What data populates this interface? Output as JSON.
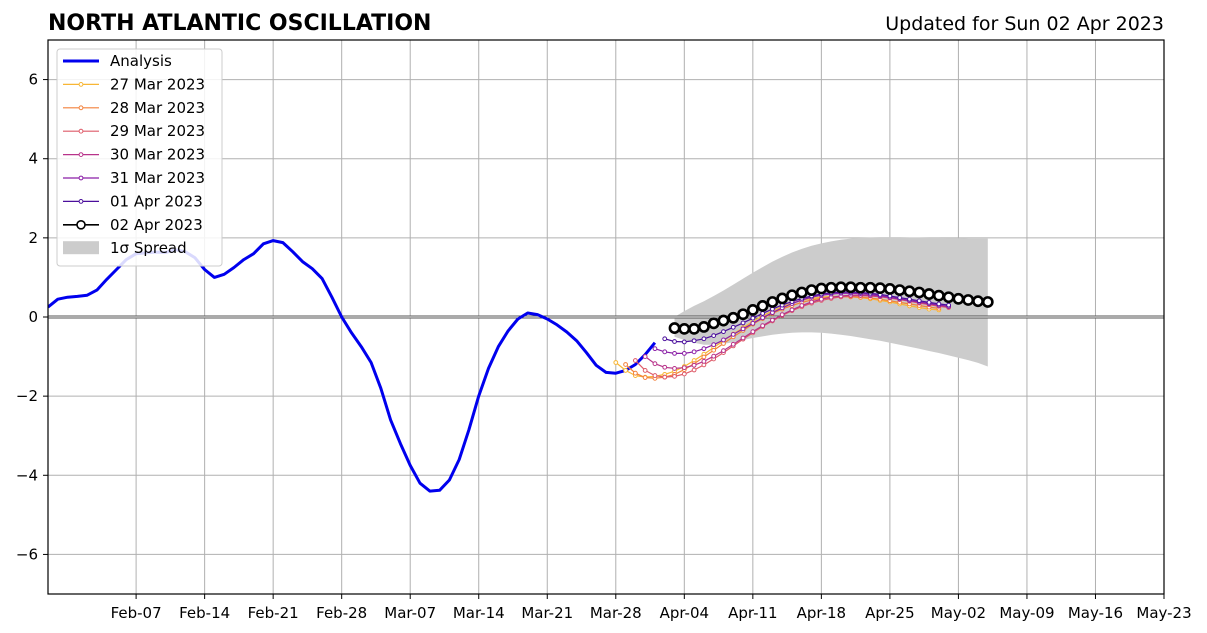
{
  "chart_data": {
    "type": "line",
    "title": "NORTH ATLANTIC OSCILLATION",
    "subtitle": "Updated for Sun 02 Apr 2023",
    "xlabel": "",
    "ylabel": "",
    "x_range": [
      "2023-01-29",
      "2023-05-23"
    ],
    "ylim": [
      -7,
      7
    ],
    "grid": true,
    "legend_position": "top-left",
    "zero_line": 0,
    "x_tick_labels": [
      "Feb-07",
      "Feb-14",
      "Feb-21",
      "Feb-28",
      "Mar-07",
      "Mar-14",
      "Mar-21",
      "Mar-28",
      "Apr-04",
      "Apr-11",
      "Apr-18",
      "Apr-25",
      "May-02",
      "May-09",
      "May-16",
      "May-23"
    ],
    "x_tick_dates": [
      "2023-02-07",
      "2023-02-14",
      "2023-02-21",
      "2023-02-28",
      "2023-03-07",
      "2023-03-14",
      "2023-03-21",
      "2023-03-28",
      "2023-04-04",
      "2023-04-11",
      "2023-04-18",
      "2023-04-25",
      "2023-05-02",
      "2023-05-09",
      "2023-05-16",
      "2023-05-23"
    ],
    "y_ticks": [
      -6,
      -4,
      -2,
      0,
      2,
      4,
      6
    ],
    "y_tick_labels": [
      "−6",
      "−4",
      "−2",
      "0",
      "2",
      "4",
      "6"
    ],
    "analysis": {
      "name": "Analysis",
      "color": "#0000ee",
      "points": [
        [
          "2023-01-29",
          0.25
        ],
        [
          "2023-01-30",
          0.45
        ],
        [
          "2023-01-31",
          0.5
        ],
        [
          "2023-02-01",
          0.52
        ],
        [
          "2023-02-02",
          0.55
        ],
        [
          "2023-02-03",
          0.68
        ],
        [
          "2023-02-04",
          0.95
        ],
        [
          "2023-02-05",
          1.2
        ],
        [
          "2023-02-06",
          1.45
        ],
        [
          "2023-02-07",
          1.6
        ],
        [
          "2023-02-08",
          1.62
        ],
        [
          "2023-02-09",
          1.64
        ],
        [
          "2023-02-10",
          1.63
        ],
        [
          "2023-02-11",
          1.7
        ],
        [
          "2023-02-12",
          1.65
        ],
        [
          "2023-02-13",
          1.5
        ],
        [
          "2023-02-14",
          1.2
        ],
        [
          "2023-02-15",
          1.0
        ],
        [
          "2023-02-16",
          1.08
        ],
        [
          "2023-02-17",
          1.25
        ],
        [
          "2023-02-18",
          1.45
        ],
        [
          "2023-02-19",
          1.6
        ],
        [
          "2023-02-20",
          1.85
        ],
        [
          "2023-02-21",
          1.93
        ],
        [
          "2023-02-22",
          1.88
        ],
        [
          "2023-02-23",
          1.65
        ],
        [
          "2023-02-24",
          1.4
        ],
        [
          "2023-02-25",
          1.22
        ],
        [
          "2023-02-26",
          0.97
        ],
        [
          "2023-02-27",
          0.5
        ],
        [
          "2023-02-28",
          0.0
        ],
        [
          "2023-03-01",
          -0.4
        ],
        [
          "2023-03-02",
          -0.75
        ],
        [
          "2023-03-03",
          -1.15
        ],
        [
          "2023-03-04",
          -1.8
        ],
        [
          "2023-03-05",
          -2.6
        ],
        [
          "2023-03-06",
          -3.2
        ],
        [
          "2023-03-07",
          -3.75
        ],
        [
          "2023-03-08",
          -4.2
        ],
        [
          "2023-03-09",
          -4.4
        ],
        [
          "2023-03-10",
          -4.38
        ],
        [
          "2023-03-11",
          -4.12
        ],
        [
          "2023-03-12",
          -3.6
        ],
        [
          "2023-03-13",
          -2.85
        ],
        [
          "2023-03-14",
          -2.0
        ],
        [
          "2023-03-15",
          -1.3
        ],
        [
          "2023-03-16",
          -0.75
        ],
        [
          "2023-03-17",
          -0.35
        ],
        [
          "2023-03-18",
          -0.05
        ],
        [
          "2023-03-19",
          0.1
        ],
        [
          "2023-03-20",
          0.06
        ],
        [
          "2023-03-21",
          -0.05
        ],
        [
          "2023-03-22",
          -0.2
        ],
        [
          "2023-03-23",
          -0.38
        ],
        [
          "2023-03-24",
          -0.6
        ],
        [
          "2023-03-25",
          -0.9
        ],
        [
          "2023-03-26",
          -1.22
        ],
        [
          "2023-03-27",
          -1.4
        ],
        [
          "2023-03-28",
          -1.42
        ],
        [
          "2023-03-29",
          -1.35
        ],
        [
          "2023-03-30",
          -1.2
        ],
        [
          "2023-03-31",
          -0.95
        ],
        [
          "2023-04-01",
          -0.65
        ]
      ]
    },
    "series": [
      {
        "name": "27 Mar 2023",
        "color": "#f8b634",
        "start": "2023-03-28",
        "values": [
          -1.15,
          -1.35,
          -1.48,
          -1.52,
          -1.5,
          -1.45,
          -1.37,
          -1.25,
          -1.1,
          -0.94,
          -0.77,
          -0.6,
          -0.43,
          -0.27,
          -0.11,
          0.03,
          0.15,
          0.26,
          0.35,
          0.42,
          0.47,
          0.5,
          0.52,
          0.52,
          0.51,
          0.49,
          0.46,
          0.42,
          0.38,
          0.33,
          0.28,
          0.24,
          0.2,
          0.18
        ]
      },
      {
        "name": "28 Mar 2023",
        "color": "#f3813b",
        "start": "2023-03-29",
        "values": [
          -1.2,
          -1.42,
          -1.53,
          -1.55,
          -1.52,
          -1.45,
          -1.33,
          -1.18,
          -1.01,
          -0.84,
          -0.67,
          -0.5,
          -0.34,
          -0.18,
          -0.04,
          0.09,
          0.2,
          0.29,
          0.37,
          0.43,
          0.47,
          0.5,
          0.51,
          0.51,
          0.5,
          0.48,
          0.45,
          0.41,
          0.37,
          0.33,
          0.29,
          0.25,
          0.22
        ]
      },
      {
        "name": "29 Mar 2023",
        "color": "#de5a68",
        "start": "2023-03-30",
        "values": [
          -1.1,
          -1.35,
          -1.48,
          -1.52,
          -1.5,
          -1.44,
          -1.34,
          -1.21,
          -1.06,
          -0.9,
          -0.73,
          -0.56,
          -0.4,
          -0.24,
          -0.1,
          0.04,
          0.16,
          0.26,
          0.35,
          0.42,
          0.47,
          0.51,
          0.53,
          0.54,
          0.53,
          0.51,
          0.48,
          0.44,
          0.4,
          0.35,
          0.31,
          0.27,
          0.24
        ]
      },
      {
        "name": "30 Mar 2023",
        "color": "#b8338a",
        "start": "2023-03-31",
        "values": [
          -1.0,
          -1.18,
          -1.27,
          -1.3,
          -1.28,
          -1.22,
          -1.12,
          -0.99,
          -0.85,
          -0.69,
          -0.53,
          -0.37,
          -0.22,
          -0.08,
          0.06,
          0.18,
          0.29,
          0.38,
          0.45,
          0.5,
          0.53,
          0.55,
          0.55,
          0.54,
          0.52,
          0.49,
          0.45,
          0.41,
          0.37,
          0.33,
          0.29,
          0.26
        ]
      },
      {
        "name": "31 Mar 2023",
        "color": "#8a1ea6",
        "start": "2023-04-01",
        "values": [
          -0.8,
          -0.88,
          -0.92,
          -0.92,
          -0.88,
          -0.8,
          -0.7,
          -0.58,
          -0.44,
          -0.3,
          -0.16,
          -0.02,
          0.11,
          0.23,
          0.34,
          0.43,
          0.5,
          0.55,
          0.58,
          0.6,
          0.6,
          0.59,
          0.57,
          0.54,
          0.5,
          0.46,
          0.42,
          0.38,
          0.34,
          0.3,
          0.27
        ]
      },
      {
        "name": "01 Apr 2023",
        "color": "#4b0f9c",
        "start": "2023-04-02",
        "values": [
          -0.55,
          -0.62,
          -0.63,
          -0.6,
          -0.55,
          -0.47,
          -0.37,
          -0.26,
          -0.15,
          -0.03,
          0.09,
          0.2,
          0.3,
          0.39,
          0.47,
          0.53,
          0.58,
          0.61,
          0.63,
          0.63,
          0.62,
          0.6,
          0.57,
          0.53,
          0.49,
          0.45,
          0.41,
          0.37,
          0.33,
          0.3
        ]
      },
      {
        "name": "02 Apr 2023",
        "color": "#000000",
        "start": "2023-04-03",
        "values": [
          -0.28,
          -0.3,
          -0.3,
          -0.25,
          -0.16,
          -0.09,
          -0.02,
          0.07,
          0.18,
          0.28,
          0.38,
          0.47,
          0.55,
          0.62,
          0.68,
          0.72,
          0.74,
          0.75,
          0.75,
          0.74,
          0.74,
          0.73,
          0.71,
          0.68,
          0.65,
          0.62,
          0.58,
          0.54,
          0.5,
          0.46,
          0.43,
          0.4,
          0.38
        ]
      }
    ],
    "spread": {
      "name": "1σ Spread",
      "color": "#cccccc",
      "start": "2023-04-03",
      "upper": [
        0.0,
        0.15,
        0.28,
        0.4,
        0.53,
        0.67,
        0.82,
        0.97,
        1.12,
        1.26,
        1.4,
        1.52,
        1.63,
        1.72,
        1.8,
        1.86,
        1.91,
        1.95,
        1.98,
        2.0,
        2.01,
        2.02,
        2.02,
        2.02,
        2.01,
        2.01,
        2.0,
        2.0,
        1.99,
        1.99,
        1.98,
        1.98,
        1.98
      ],
      "lower": [
        -0.5,
        -0.58,
        -0.65,
        -0.7,
        -0.7,
        -0.68,
        -0.64,
        -0.58,
        -0.53,
        -0.49,
        -0.45,
        -0.42,
        -0.4,
        -0.39,
        -0.39,
        -0.4,
        -0.42,
        -0.45,
        -0.48,
        -0.52,
        -0.56,
        -0.6,
        -0.65,
        -0.7,
        -0.75,
        -0.8,
        -0.86,
        -0.91,
        -0.97,
        -1.03,
        -1.09,
        -1.16,
        -1.25
      ]
    },
    "legend": {
      "analysis": "Analysis",
      "spread": "1σ Spread"
    }
  }
}
